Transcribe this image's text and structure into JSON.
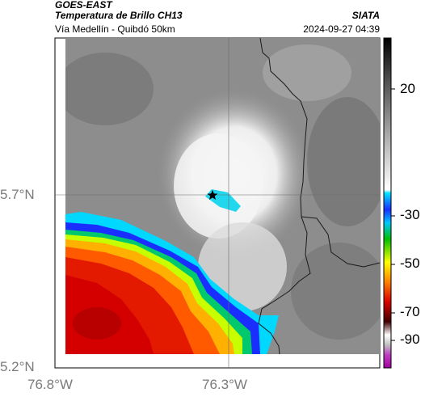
{
  "header": {
    "satellite": "GOES-EAST",
    "product": "Temperatura de Brillo CH13",
    "location": "Vía Medellín - Quibdó 50km",
    "provider": "SIATA",
    "datetime": "2024-09-27 04:39"
  },
  "map": {
    "lat_labels": [
      "5.7°N",
      "5.2°N"
    ],
    "lon_labels": [
      "76.8°W",
      "76.3°W"
    ],
    "marker": "star-marker",
    "gridlines": true
  },
  "colorbar": {
    "tick_labels": [
      "20",
      "-30",
      "-50",
      "-70",
      "-90"
    ],
    "colors": [
      "#000000",
      "#ffffff",
      "#00e5ff",
      "#1a2fff",
      "#00c000",
      "#ffff00",
      "#ff8000",
      "#d90000",
      "#400000",
      "#c040c0"
    ]
  }
}
